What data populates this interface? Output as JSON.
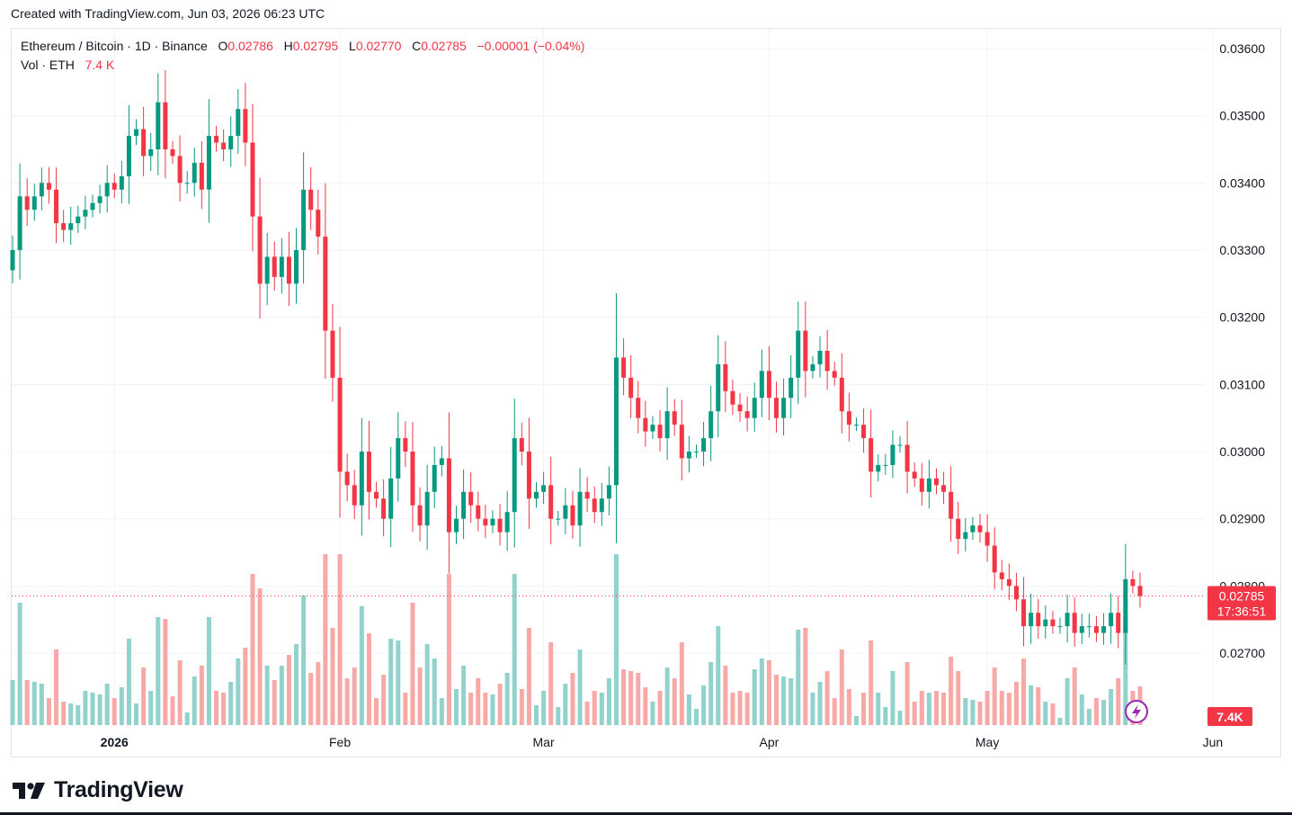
{
  "caption": "Created with TradingView.com, Jun 03, 2026 06:23 UTC",
  "legend": {
    "symbol": "Ethereum / Bitcoin · 1D · Binance",
    "o_label": "O",
    "o_value": "0.02786",
    "h_label": "H",
    "h_value": "0.02795",
    "l_label": "L",
    "l_value": "0.02770",
    "c_label": "C",
    "c_value": "0.02785",
    "change": "−0.00001 (−0.04%)",
    "vol_label": "Vol · ETH",
    "vol_value": "7.4 K"
  },
  "price_tag": {
    "price": "0.02785",
    "countdown": "17:36:51"
  },
  "volume_tag": "7.4K",
  "brand": "TradingView",
  "colors": {
    "up": "#089981",
    "down": "#f23645",
    "up_vol": "#92d2cc",
    "down_vol": "#f7a9a7",
    "grid": "#f0f3fa"
  },
  "chart_data": {
    "type": "candlestick",
    "interval": "1D",
    "yticks": [
      "0.03600",
      "0.03500",
      "0.03400",
      "0.03300",
      "0.03200",
      "0.03100",
      "0.03000",
      "0.02900",
      "0.02800",
      "0.02700"
    ],
    "ylim": [
      0.0262,
      0.0364
    ],
    "xticks": [
      {
        "label": "2026",
        "index": 14
      },
      {
        "label": "Feb",
        "index": 45
      },
      {
        "label": "Mar",
        "index": 73
      },
      {
        "label": "Apr",
        "index": 104
      },
      {
        "label": "May",
        "index": 134
      },
      {
        "label": "Jun",
        "index": 165
      }
    ],
    "last_price": 0.02785,
    "closes": [
      0.033,
      0.0338,
      0.0336,
      0.0338,
      0.034,
      0.0339,
      0.0334,
      0.0333,
      0.0334,
      0.0335,
      0.0336,
      0.0337,
      0.0338,
      0.034,
      0.0339,
      0.0341,
      0.0347,
      0.0348,
      0.0344,
      0.0345,
      0.0352,
      0.0345,
      0.0344,
      0.034,
      0.034,
      0.0343,
      0.0339,
      0.0347,
      0.0346,
      0.0345,
      0.0347,
      0.0351,
      0.0346,
      0.0335,
      0.0325,
      0.0329,
      0.0326,
      0.0329,
      0.0325,
      0.033,
      0.0339,
      0.0336,
      0.0332,
      0.0318,
      0.0311,
      0.0297,
      0.0295,
      0.0292,
      0.03,
      0.0294,
      0.0293,
      0.029,
      0.0296,
      0.0302,
      0.03,
      0.0292,
      0.0289,
      0.0294,
      0.0298,
      0.0299,
      0.0288,
      0.029,
      0.0294,
      0.0292,
      0.029,
      0.0289,
      0.029,
      0.0288,
      0.0291,
      0.0302,
      0.03,
      0.0293,
      0.0294,
      0.0295,
      0.029,
      0.029,
      0.0292,
      0.0289,
      0.0294,
      0.0293,
      0.0291,
      0.0293,
      0.0295,
      0.0314,
      0.0311,
      0.0308,
      0.0305,
      0.0303,
      0.0304,
      0.0302,
      0.0306,
      0.0304,
      0.0299,
      0.03,
      0.03,
      0.0302,
      0.0306,
      0.0313,
      0.0309,
      0.0307,
      0.0306,
      0.0305,
      0.0308,
      0.0312,
      0.0308,
      0.0305,
      0.0308,
      0.0311,
      0.0318,
      0.0312,
      0.0313,
      0.0315,
      0.0312,
      0.0311,
      0.0306,
      0.0304,
      0.0304,
      0.0302,
      0.0297,
      0.0298,
      0.0298,
      0.0301,
      0.0301,
      0.0297,
      0.0296,
      0.0294,
      0.0296,
      0.0295,
      0.0294,
      0.029,
      0.0287,
      0.0288,
      0.0289,
      0.0288,
      0.0286,
      0.0282,
      0.0281,
      0.028,
      0.0278,
      0.0274,
      0.0276,
      0.0274,
      0.0275,
      0.0274,
      0.0274,
      0.0276,
      0.0273,
      0.0274,
      0.0274,
      0.0273,
      0.0274,
      0.0276,
      0.0273,
      0.0281,
      0.028,
      0.02785
    ]
  }
}
